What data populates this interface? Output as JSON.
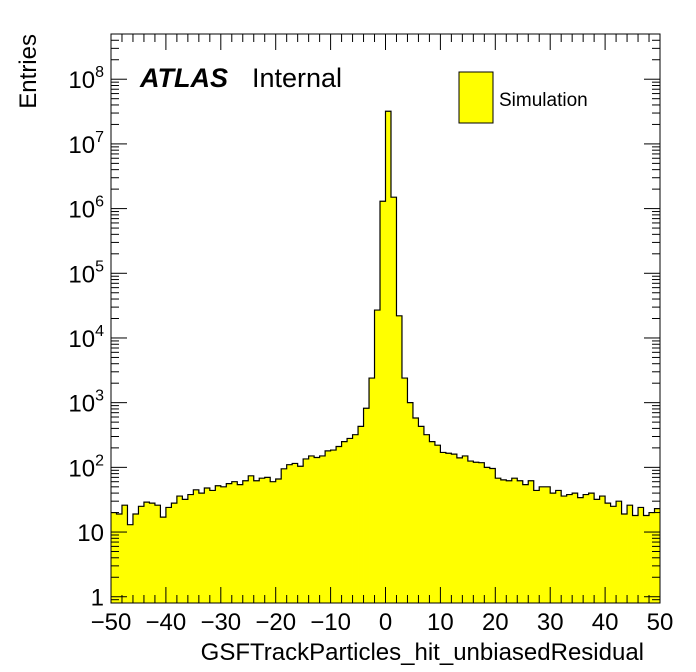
{
  "chart_data": {
    "type": "bar",
    "xlabel": "GSFTrackParticles_hit_unbiasedResidual",
    "ylabel": "Entries",
    "xlim": [
      -50,
      50
    ],
    "ylim": [
      0.8,
      500000000
    ],
    "yscale": "log",
    "bin_width": 1,
    "x_ticks": [
      "−50",
      "−40",
      "−30",
      "−20",
      "−10",
      "0",
      "10",
      "20",
      "30",
      "40",
      "50"
    ],
    "x_tick_values": [
      -50,
      -40,
      -30,
      -20,
      -10,
      0,
      10,
      20,
      30,
      40,
      50
    ],
    "y_ticks": [
      {
        "value": 1,
        "base": "1",
        "exp": ""
      },
      {
        "value": 10,
        "base": "10",
        "exp": ""
      },
      {
        "value": 100,
        "base": "10",
        "exp": "2"
      },
      {
        "value": 1000,
        "base": "10",
        "exp": "3"
      },
      {
        "value": 10000,
        "base": "10",
        "exp": "4"
      },
      {
        "value": 100000,
        "base": "10",
        "exp": "5"
      },
      {
        "value": 1000000,
        "base": "10",
        "exp": "6"
      },
      {
        "value": 10000000,
        "base": "10",
        "exp": "7"
      },
      {
        "value": 100000000,
        "base": "10",
        "exp": "8"
      }
    ],
    "series": [
      {
        "name": "Simulation",
        "color": "#ffff00",
        "line_color": "#000000",
        "bin_edges_start": -50,
        "values": [
          20,
          19,
          26,
          13,
          19,
          25,
          29,
          28,
          26,
          17,
          24,
          28,
          36,
          32,
          38,
          45,
          40,
          48,
          44,
          52,
          50,
          56,
          60,
          54,
          62,
          74,
          62,
          68,
          70,
          60,
          66,
          95,
          110,
          115,
          104,
          135,
          150,
          142,
          150,
          180,
          185,
          210,
          250,
          280,
          320,
          430,
          820,
          2400,
          27000,
          1300000,
          32000000,
          1500000,
          22000,
          2400,
          1000,
          580,
          430,
          320,
          250,
          220,
          170,
          165,
          160,
          140,
          150,
          125,
          120,
          118,
          100,
          96,
          68,
          64,
          62,
          68,
          62,
          54,
          62,
          44,
          50,
          50,
          40,
          44,
          36,
          38,
          40,
          34,
          38,
          40,
          32,
          36,
          28,
          25,
          30,
          19,
          26,
          18,
          24,
          18,
          20,
          23
        ]
      }
    ],
    "grid": false,
    "legend_position": "top-right",
    "annotation": {
      "bold": "ATLAS",
      "plain": "Internal"
    }
  }
}
